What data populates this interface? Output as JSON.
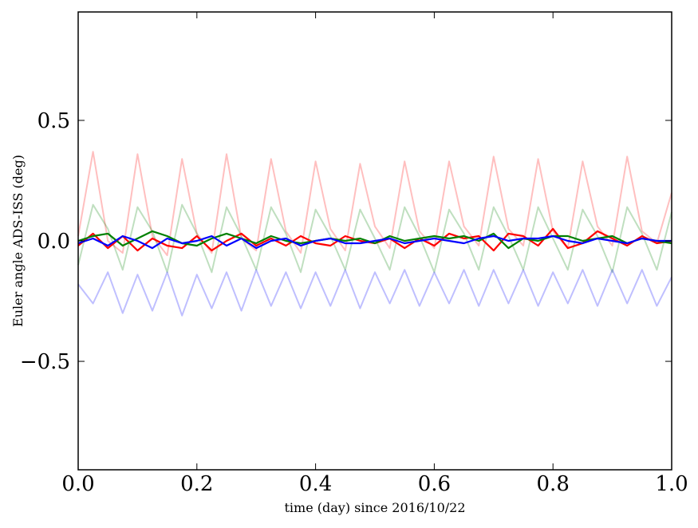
{
  "chart_data": {
    "type": "line",
    "title": "",
    "xlabel": "time (day) since 2016/10/22",
    "ylabel": "Euler angle ADS-ISS (deg)",
    "xlim": [
      0.0,
      1.0
    ],
    "ylim": [
      -0.95,
      0.95
    ],
    "grid": false,
    "x_ticks": [
      0.0,
      0.2,
      0.4,
      0.6,
      0.8,
      1.0
    ],
    "x_tick_labels": [
      "0.0",
      "0.2",
      "0.4",
      "0.6",
      "0.8",
      "1.0"
    ],
    "y_ticks": [
      0.5,
      0.0,
      -0.5
    ],
    "y_tick_labels": [
      "0.5",
      "0.0",
      "−0.5"
    ],
    "x": [
      0.0,
      0.025,
      0.05,
      0.075,
      0.1,
      0.125,
      0.15,
      0.175,
      0.2,
      0.225,
      0.25,
      0.275,
      0.3,
      0.325,
      0.35,
      0.375,
      0.4,
      0.425,
      0.45,
      0.475,
      0.5,
      0.525,
      0.55,
      0.575,
      0.6,
      0.625,
      0.65,
      0.675,
      0.7,
      0.725,
      0.75,
      0.775,
      0.8,
      0.825,
      0.85,
      0.875,
      0.9,
      0.925,
      0.95,
      0.975,
      1.0
    ],
    "series": [
      {
        "color": "#ff0000",
        "opacity": 0.25,
        "values": [
          0.02,
          0.37,
          0.0,
          -0.05,
          0.36,
          0.02,
          -0.06,
          0.34,
          0.03,
          -0.05,
          0.36,
          0.01,
          -0.04,
          0.34,
          0.04,
          -0.05,
          0.33,
          0.05,
          -0.04,
          0.32,
          0.06,
          -0.03,
          0.33,
          0.04,
          -0.03,
          0.33,
          0.06,
          -0.02,
          0.35,
          0.05,
          -0.02,
          0.34,
          0.04,
          -0.03,
          0.33,
          0.06,
          -0.02,
          0.35,
          0.04,
          -0.01,
          0.2
        ]
      },
      {
        "color": "#008000",
        "opacity": 0.25,
        "values": [
          -0.1,
          0.15,
          0.05,
          -0.12,
          0.14,
          0.04,
          -0.13,
          0.15,
          0.03,
          -0.13,
          0.14,
          0.02,
          -0.12,
          0.14,
          0.03,
          -0.13,
          0.13,
          0.02,
          -0.12,
          0.13,
          0.01,
          -0.12,
          0.14,
          0.02,
          -0.13,
          0.13,
          0.03,
          -0.12,
          0.14,
          0.02,
          -0.12,
          0.14,
          0.01,
          -0.12,
          0.13,
          0.02,
          -0.13,
          0.14,
          0.03,
          -0.12,
          0.12
        ]
      },
      {
        "color": "#0000ff",
        "opacity": 0.25,
        "values": [
          -0.18,
          -0.26,
          -0.13,
          -0.3,
          -0.14,
          -0.29,
          -0.13,
          -0.31,
          -0.14,
          -0.28,
          -0.13,
          -0.29,
          -0.12,
          -0.27,
          -0.13,
          -0.28,
          -0.13,
          -0.27,
          -0.12,
          -0.28,
          -0.13,
          -0.26,
          -0.12,
          -0.27,
          -0.13,
          -0.26,
          -0.12,
          -0.27,
          -0.12,
          -0.26,
          -0.12,
          -0.27,
          -0.13,
          -0.26,
          -0.12,
          -0.27,
          -0.12,
          -0.26,
          -0.12,
          -0.27,
          -0.15
        ]
      },
      {
        "color": "#ff0000",
        "opacity": 1,
        "values": [
          -0.02,
          0.03,
          -0.03,
          0.02,
          -0.04,
          0.01,
          -0.02,
          -0.03,
          0.02,
          -0.04,
          0.0,
          0.03,
          -0.02,
          0.01,
          -0.02,
          0.02,
          -0.01,
          -0.02,
          0.02,
          0.0,
          -0.01,
          0.01,
          -0.03,
          0.01,
          -0.02,
          0.03,
          0.01,
          0.02,
          -0.04,
          0.03,
          0.02,
          -0.02,
          0.05,
          -0.03,
          -0.01,
          0.04,
          0.01,
          -0.02,
          0.02,
          -0.01,
          0.0
        ]
      },
      {
        "color": "#008000",
        "opacity": 1,
        "values": [
          0.0,
          0.02,
          0.03,
          -0.02,
          0.01,
          0.04,
          0.02,
          -0.01,
          -0.02,
          0.01,
          0.03,
          0.01,
          -0.01,
          0.02,
          0.0,
          -0.01,
          0.0,
          0.01,
          0.0,
          0.01,
          -0.01,
          0.02,
          0.0,
          0.01,
          0.02,
          0.01,
          0.02,
          0.0,
          0.03,
          -0.03,
          0.01,
          0.0,
          0.02,
          0.02,
          0.0,
          0.01,
          0.02,
          -0.01,
          0.01,
          0.0,
          -0.01
        ]
      },
      {
        "color": "#0000ff",
        "opacity": 1,
        "values": [
          -0.01,
          0.01,
          -0.02,
          0.02,
          0.0,
          -0.03,
          0.01,
          -0.01,
          0.0,
          0.02,
          -0.02,
          0.01,
          -0.03,
          0.0,
          0.01,
          -0.02,
          0.0,
          0.01,
          -0.01,
          -0.01,
          0.0,
          0.01,
          -0.01,
          0.0,
          0.01,
          0.0,
          -0.01,
          0.01,
          0.02,
          0.0,
          0.01,
          0.01,
          0.02,
          0.0,
          -0.01,
          0.01,
          0.0,
          -0.01,
          0.01,
          0.0,
          0.0
        ]
      }
    ]
  }
}
